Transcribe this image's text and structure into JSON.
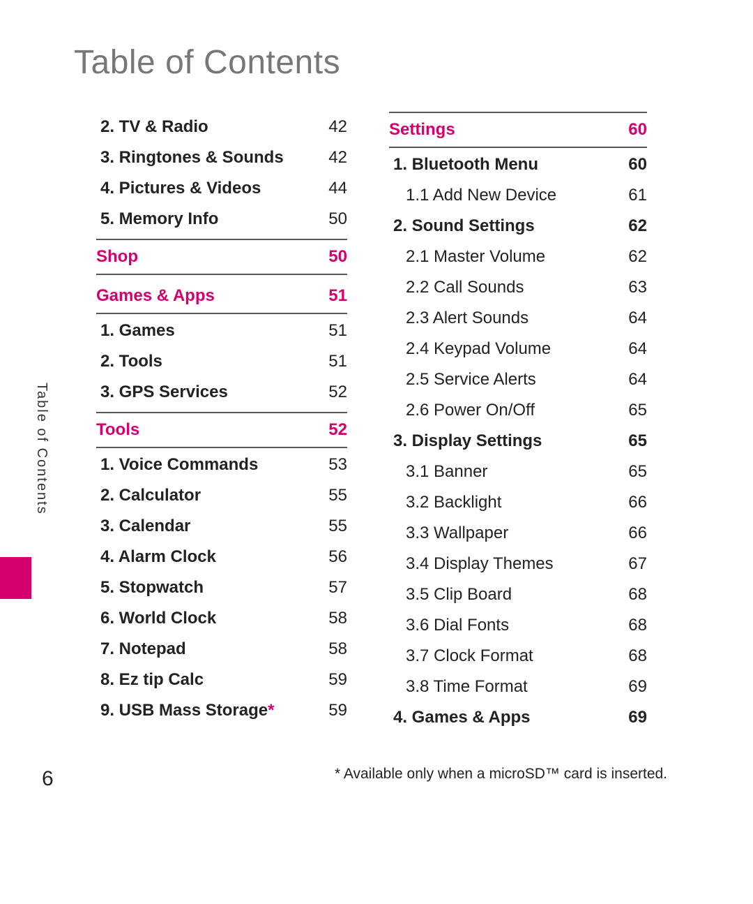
{
  "title": "Table of Contents",
  "side_tab": "Table of Contents",
  "page_number": "6",
  "footnote_star": "*",
  "footnote_text": " Available only when a microSD™ card is inserted.",
  "col1": {
    "pre_items": [
      {
        "label": "2. TV & Radio",
        "page": "42"
      },
      {
        "label": "3. Ringtones & Sounds",
        "page": "42"
      },
      {
        "label": "4. Pictures & Videos",
        "page": "44"
      },
      {
        "label": "5. Memory Info",
        "page": "50"
      }
    ],
    "shop": {
      "label": "Shop",
      "page": "50"
    },
    "games_apps": {
      "label": "Games & Apps",
      "page": "51"
    },
    "games_apps_items": [
      {
        "label": "1. Games",
        "page": "51"
      },
      {
        "label": "2. Tools",
        "page": "51"
      },
      {
        "label": "3. GPS Services",
        "page": "52"
      }
    ],
    "tools": {
      "label": "Tools",
      "page": "52"
    },
    "tools_items": [
      {
        "label": "1. Voice Commands",
        "page": "53"
      },
      {
        "label": "2. Calculator",
        "page": "55"
      },
      {
        "label": "3. Calendar",
        "page": "55"
      },
      {
        "label": "4. Alarm Clock",
        "page": "56"
      },
      {
        "label": "5. Stopwatch",
        "page": "57"
      },
      {
        "label": "6. World Clock",
        "page": "58"
      },
      {
        "label": "7. Notepad",
        "page": "58"
      },
      {
        "label": "8. Ez tip Calc",
        "page": "59"
      },
      {
        "label": "9. USB Mass Storage",
        "page": "59",
        "starred": true
      }
    ]
  },
  "col2": {
    "settings": {
      "label": "Settings",
      "page": "60"
    },
    "items": [
      {
        "level": 1,
        "label": "1. Bluetooth Menu",
        "page": "60"
      },
      {
        "level": 2,
        "label": "1.1 Add New Device",
        "page": "61"
      },
      {
        "level": 1,
        "label": "2. Sound Settings",
        "page": "62"
      },
      {
        "level": 2,
        "label": "2.1 Master Volume",
        "page": "62"
      },
      {
        "level": 2,
        "label": "2.2 Call Sounds",
        "page": "63"
      },
      {
        "level": 2,
        "label": "2.3 Alert Sounds",
        "page": "64"
      },
      {
        "level": 2,
        "label": "2.4 Keypad Volume",
        "page": "64"
      },
      {
        "level": 2,
        "label": "2.5 Service Alerts",
        "page": "64"
      },
      {
        "level": 2,
        "label": "2.6 Power On/Off",
        "page": "65"
      },
      {
        "level": 1,
        "label": "3. Display Settings",
        "page": "65"
      },
      {
        "level": 2,
        "label": "3.1 Banner",
        "page": "65"
      },
      {
        "level": 2,
        "label": "3.2 Backlight",
        "page": "66"
      },
      {
        "level": 2,
        "label": "3.3 Wallpaper",
        "page": "66"
      },
      {
        "level": 2,
        "label": "3.4 Display Themes",
        "page": "67"
      },
      {
        "level": 2,
        "label": "3.5 Clip Board",
        "page": "68"
      },
      {
        "level": 2,
        "label": "3.6 Dial Fonts",
        "page": "68"
      },
      {
        "level": 2,
        "label": "3.7 Clock Format",
        "page": "68"
      },
      {
        "level": 2,
        "label": "3.8 Time Format",
        "page": "69"
      },
      {
        "level": 1,
        "label": "4. Games & Apps",
        "page": "69"
      }
    ]
  },
  "colors": {
    "accent": "#d5006d",
    "title_gray": "#777777",
    "text": "#222222",
    "rule": "#555555",
    "background": "#ffffff"
  }
}
